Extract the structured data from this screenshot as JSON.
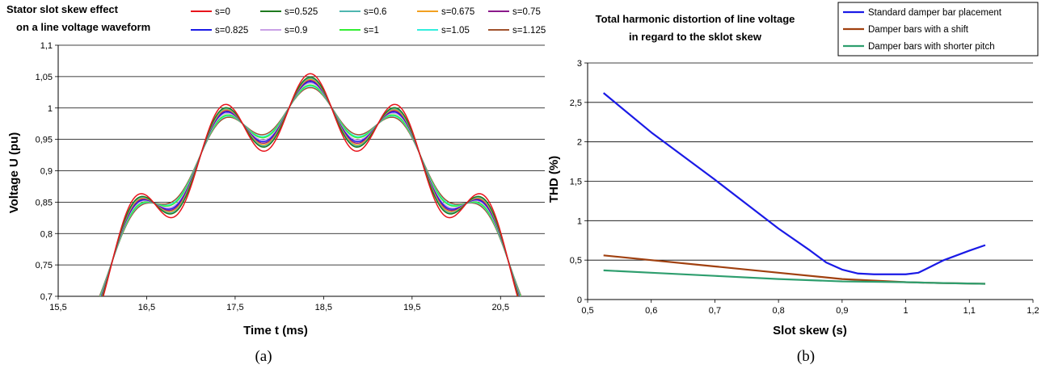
{
  "chart_data": [
    {
      "type": "line",
      "panel_label": "(a)",
      "title_lines": [
        "Stator slot skew effect",
        "on a line voltage waveform"
      ],
      "xlabel": "Time t (ms)",
      "ylabel": "Voltage U (pu)",
      "xlim": [
        15.5,
        21
      ],
      "ylim": [
        0.7,
        1.1
      ],
      "xticks": [
        15.5,
        16.5,
        17.5,
        18.5,
        19.5,
        20.5
      ],
      "xtick_labels": [
        "15,5",
        "16,5",
        "17,5",
        "18,5",
        "19,5",
        "20,5"
      ],
      "yticks": [
        0.7,
        0.75,
        0.8,
        0.85,
        0.9,
        0.95,
        1,
        1.05,
        1.1
      ],
      "ytick_labels": [
        "0,7",
        "0,75",
        "0,8",
        "0,85",
        "0,9",
        "0,95",
        "1",
        "1,05",
        "1,1"
      ],
      "grid": "horizontal",
      "legend_position": "top",
      "x_range": [
        15.85,
        20.85
      ],
      "series": [
        {
          "name": "s=0",
          "s": 0,
          "color": "#e8141c"
        },
        {
          "name": "s=0.525",
          "s": 0.525,
          "color": "#1f7a1f"
        },
        {
          "name": "s=0.6",
          "s": 0.6,
          "color": "#4fb6b0"
        },
        {
          "name": "s=0.675",
          "s": 0.675,
          "color": "#f2a020"
        },
        {
          "name": "s=0.75",
          "s": 0.75,
          "color": "#8b1a8b"
        },
        {
          "name": "s=0.825",
          "s": 0.825,
          "color": "#1a1ae6"
        },
        {
          "name": "s=0.9",
          "s": 0.9,
          "color": "#c9a0e6"
        },
        {
          "name": "s=1",
          "s": 1,
          "color": "#33ee33"
        },
        {
          "name": "s=1.05",
          "s": 1.05,
          "color": "#33eedd"
        },
        {
          "name": "s=1.125",
          "s": 1.125,
          "color": "#a0522d"
        }
      ]
    },
    {
      "type": "line",
      "panel_label": "(b)",
      "title_lines": [
        "Total harmonic distortion of line voltage",
        "in regard to the sklot skew"
      ],
      "xlabel": "Slot skew (s)",
      "ylabel": "THD (%)",
      "xlim": [
        0.5,
        1.2
      ],
      "ylim": [
        0,
        3
      ],
      "xticks": [
        0.5,
        0.6,
        0.7,
        0.8,
        0.9,
        1,
        1.1,
        1.2
      ],
      "xtick_labels": [
        "0,5",
        "0,6",
        "0,7",
        "0,8",
        "0,9",
        "1",
        "1,1",
        "1,2"
      ],
      "yticks": [
        0,
        0.5,
        1,
        1.5,
        2,
        2.5,
        3
      ],
      "ytick_labels": [
        "0",
        "0,5",
        "1",
        "1,5",
        "2",
        "2,5",
        "3"
      ],
      "grid": "horizontal",
      "legend_position": "top-right",
      "series": [
        {
          "name": "Standard damper bar placement",
          "color": "#1a1ae6",
          "x": [
            0.525,
            0.6,
            0.7,
            0.8,
            0.85,
            0.875,
            0.9,
            0.925,
            0.95,
            0.975,
            1.0,
            1.02,
            1.04,
            1.06,
            1.08,
            1.1,
            1.125
          ],
          "y": [
            2.62,
            2.12,
            1.52,
            0.9,
            0.62,
            0.47,
            0.38,
            0.33,
            0.32,
            0.32,
            0.32,
            0.34,
            0.42,
            0.5,
            0.56,
            0.62,
            0.69
          ]
        },
        {
          "name": "Damper bars with a shift",
          "color": "#a0400f",
          "x": [
            0.525,
            0.6,
            0.7,
            0.8,
            0.9,
            1.0,
            1.05,
            1.125
          ],
          "y": [
            0.56,
            0.5,
            0.42,
            0.34,
            0.26,
            0.22,
            0.21,
            0.2
          ]
        },
        {
          "name": "Damper bars with shorter pitch",
          "color": "#2e9e6e",
          "x": [
            0.525,
            0.6,
            0.7,
            0.8,
            0.9,
            1.0,
            1.05,
            1.125
          ],
          "y": [
            0.37,
            0.34,
            0.3,
            0.26,
            0.23,
            0.22,
            0.21,
            0.2
          ]
        }
      ]
    }
  ]
}
